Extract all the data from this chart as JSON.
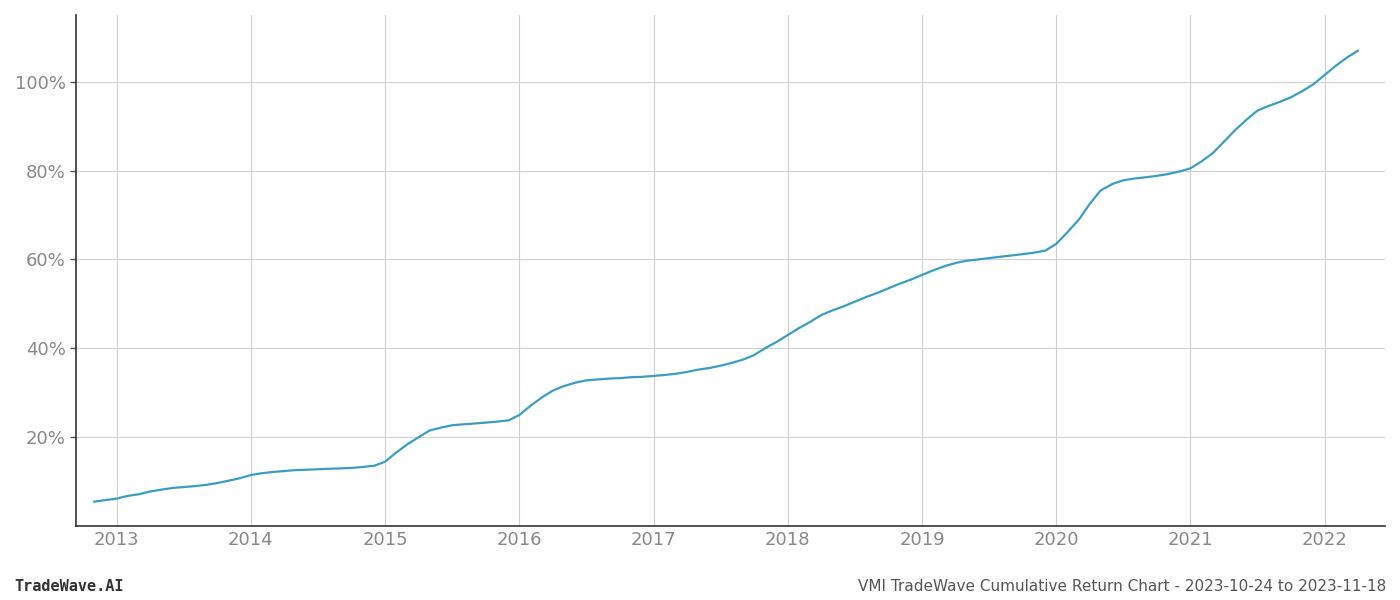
{
  "title_left": "TradeWave.AI",
  "title_right": "VMI TradeWave Cumulative Return Chart - 2023-10-24 to 2023-11-18",
  "line_color": "#3a9ec2",
  "background_color": "#ffffff",
  "grid_color": "#d0d0d0",
  "x_years": [
    2013,
    2014,
    2015,
    2016,
    2017,
    2018,
    2019,
    2020,
    2021,
    2022
  ],
  "x_values": [
    2012.83,
    2013.0,
    2013.08,
    2013.17,
    2013.25,
    2013.33,
    2013.42,
    2013.5,
    2013.58,
    2013.67,
    2013.75,
    2013.83,
    2013.92,
    2014.0,
    2014.08,
    2014.17,
    2014.25,
    2014.33,
    2014.42,
    2014.5,
    2014.58,
    2014.67,
    2014.75,
    2014.83,
    2014.92,
    2015.0,
    2015.08,
    2015.17,
    2015.25,
    2015.33,
    2015.42,
    2015.5,
    2015.58,
    2015.67,
    2015.75,
    2015.83,
    2015.92,
    2016.0,
    2016.08,
    2016.17,
    2016.25,
    2016.33,
    2016.42,
    2016.5,
    2016.58,
    2016.67,
    2016.75,
    2016.83,
    2016.92,
    2017.0,
    2017.08,
    2017.17,
    2017.25,
    2017.33,
    2017.42,
    2017.5,
    2017.58,
    2017.67,
    2017.75,
    2017.83,
    2017.92,
    2018.0,
    2018.08,
    2018.17,
    2018.25,
    2018.33,
    2018.42,
    2018.5,
    2018.58,
    2018.67,
    2018.75,
    2018.83,
    2018.92,
    2019.0,
    2019.08,
    2019.17,
    2019.25,
    2019.33,
    2019.42,
    2019.5,
    2019.58,
    2019.67,
    2019.75,
    2019.83,
    2019.92,
    2020.0,
    2020.08,
    2020.17,
    2020.25,
    2020.33,
    2020.42,
    2020.5,
    2020.58,
    2020.67,
    2020.75,
    2020.83,
    2020.92,
    2021.0,
    2021.08,
    2021.17,
    2021.25,
    2021.33,
    2021.42,
    2021.5,
    2021.58,
    2021.67,
    2021.75,
    2021.83,
    2021.92,
    2022.0,
    2022.08,
    2022.17,
    2022.25
  ],
  "y_values": [
    5.5,
    6.2,
    6.8,
    7.2,
    7.8,
    8.2,
    8.6,
    8.8,
    9.0,
    9.3,
    9.7,
    10.2,
    10.8,
    11.5,
    11.9,
    12.2,
    12.4,
    12.6,
    12.7,
    12.8,
    12.9,
    13.0,
    13.1,
    13.3,
    13.6,
    14.5,
    16.5,
    18.5,
    20.0,
    21.5,
    22.2,
    22.7,
    22.9,
    23.1,
    23.3,
    23.5,
    23.8,
    25.0,
    27.0,
    29.0,
    30.5,
    31.5,
    32.3,
    32.8,
    33.0,
    33.2,
    33.3,
    33.5,
    33.6,
    33.8,
    34.0,
    34.3,
    34.7,
    35.2,
    35.6,
    36.1,
    36.7,
    37.5,
    38.5,
    40.0,
    41.5,
    43.0,
    44.5,
    46.0,
    47.5,
    48.5,
    49.5,
    50.5,
    51.5,
    52.5,
    53.5,
    54.5,
    55.5,
    56.5,
    57.5,
    58.5,
    59.2,
    59.7,
    60.0,
    60.3,
    60.6,
    60.9,
    61.2,
    61.5,
    62.0,
    63.5,
    66.0,
    69.0,
    72.5,
    75.5,
    77.0,
    77.8,
    78.2,
    78.5,
    78.8,
    79.2,
    79.8,
    80.5,
    82.0,
    84.0,
    86.5,
    89.0,
    91.5,
    93.5,
    94.5,
    95.5,
    96.5,
    97.8,
    99.5,
    101.5,
    103.5,
    105.5,
    107.0
  ],
  "yticks": [
    20,
    40,
    60,
    80,
    100
  ],
  "ytick_labels": [
    "20%",
    "40%",
    "60%",
    "80%",
    "100%"
  ],
  "xlim": [
    2012.7,
    2022.45
  ],
  "ylim": [
    0,
    115
  ],
  "tick_color": "#888888",
  "line_width": 1.6,
  "footer_fontsize": 11,
  "tick_fontsize": 13
}
